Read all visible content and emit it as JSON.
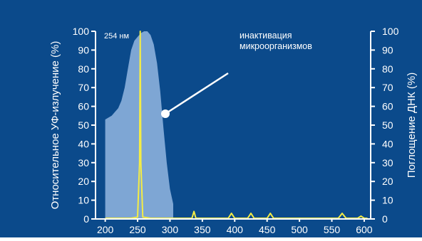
{
  "colors": {
    "background": "#0b4a8b",
    "axis": "#ffffff",
    "absorption_fill": "#7ea6d4",
    "emission_line": "#f4ec45",
    "annotation": "#ffffff"
  },
  "chart_data": {
    "type": "area",
    "title": "",
    "xlabel": "",
    "ylabel_left": "Относительное УФ-излучение (%)",
    "ylabel_right": "Поглощение ДНК (%)",
    "xlim": [
      185,
      610
    ],
    "ylim": [
      0,
      100
    ],
    "x_ticks": [
      "200",
      "250",
      "300",
      "350",
      "400",
      "450",
      "500",
      "550",
      "600"
    ],
    "y_ticks_left": [
      "0",
      "10",
      "20",
      "30",
      "40",
      "50",
      "60",
      "70",
      "80",
      "90",
      "100"
    ],
    "y_ticks_right": [
      "0",
      "10",
      "20",
      "30",
      "40",
      "50",
      "60",
      "70",
      "80",
      "90",
      "100"
    ],
    "grid": false,
    "series": [
      {
        "kind": "area",
        "axis": "right",
        "x": [
          200,
          205,
          210,
          215,
          220,
          225,
          230,
          235,
          240,
          245,
          250,
          255,
          260,
          265,
          270,
          275,
          280,
          285,
          290,
          295,
          300,
          305
        ],
        "y": [
          53,
          54,
          55,
          57,
          59,
          63,
          70,
          80,
          90,
          95,
          97,
          99,
          100,
          100,
          98,
          93,
          83,
          68,
          48,
          30,
          16,
          8
        ]
      },
      {
        "kind": "line",
        "axis": "left",
        "x": [
          200,
          240,
          250,
          253,
          254,
          255,
          258,
          270,
          300,
          334,
          337,
          340,
          390,
          395,
          400,
          420,
          425,
          430,
          450,
          455,
          460,
          560,
          566,
          572,
          590,
          595,
          600,
          605
        ],
        "y": [
          0,
          0,
          1,
          30,
          100,
          30,
          1,
          0,
          0,
          0,
          4,
          0,
          0,
          3,
          0,
          0,
          3,
          0,
          0,
          3,
          0,
          0,
          3,
          0,
          0,
          1.5,
          0,
          0
        ]
      }
    ],
    "annotations": [
      {
        "text": "254 нм"
      },
      {
        "text_lines": [
          "инактивация",
          "микроорганизмов"
        ]
      }
    ]
  }
}
